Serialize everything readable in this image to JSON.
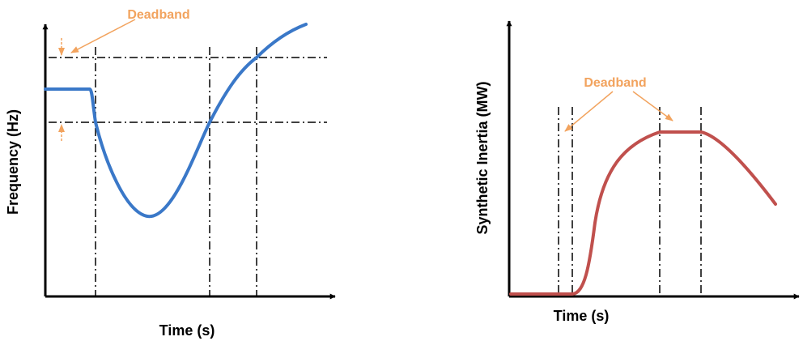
{
  "colors": {
    "axis": "#000000",
    "frequency_curve": "#3a78c8",
    "inertia_curve": "#c0504d",
    "annotation": "#f2a35e"
  },
  "left_panel": {
    "xlabel": "Time (s)",
    "ylabel": "Frequency (Hz)",
    "annotation": "Deadband"
  },
  "right_panel": {
    "xlabel": "Time (s)",
    "ylabel": "Synthetic Inertia (MW)",
    "annotation": "Deadband"
  }
}
